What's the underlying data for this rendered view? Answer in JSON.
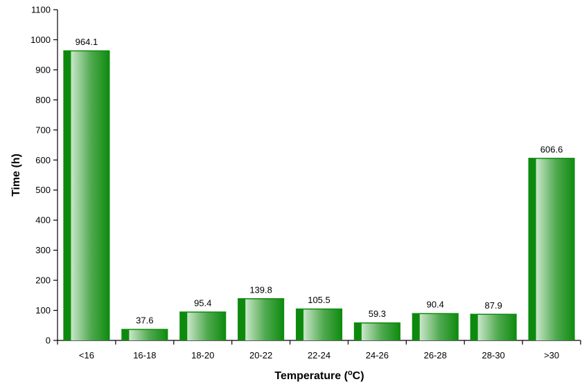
{
  "colors": {
    "bar_dark": "#0d8a0d",
    "bar_mid": "#4fa94f",
    "bar_light": "#c9e6c9"
  },
  "chart_data": {
    "type": "bar",
    "categories": [
      "<16",
      "16-18",
      "18-20",
      "20-22",
      "22-24",
      "24-26",
      "26-28",
      "28-30",
      ">30"
    ],
    "values": [
      964.1,
      37.6,
      95.4,
      139.8,
      105.5,
      59.3,
      90.4,
      87.9,
      606.6
    ],
    "data_labels": [
      "964.1",
      "37.6",
      "95.4",
      "139.8",
      "105.5",
      "59.3",
      "90.4",
      "87.9",
      "606.6"
    ],
    "xlabel_main": "Temperature (",
    "xlabel_sup": "o",
    "xlabel_end": "C)",
    "ylabel": "Time (h)",
    "ylim": [
      0,
      1100
    ],
    "yticks": [
      0,
      100,
      200,
      300,
      400,
      500,
      600,
      700,
      800,
      900,
      1000,
      1100
    ],
    "grid": false,
    "legend": "none"
  }
}
